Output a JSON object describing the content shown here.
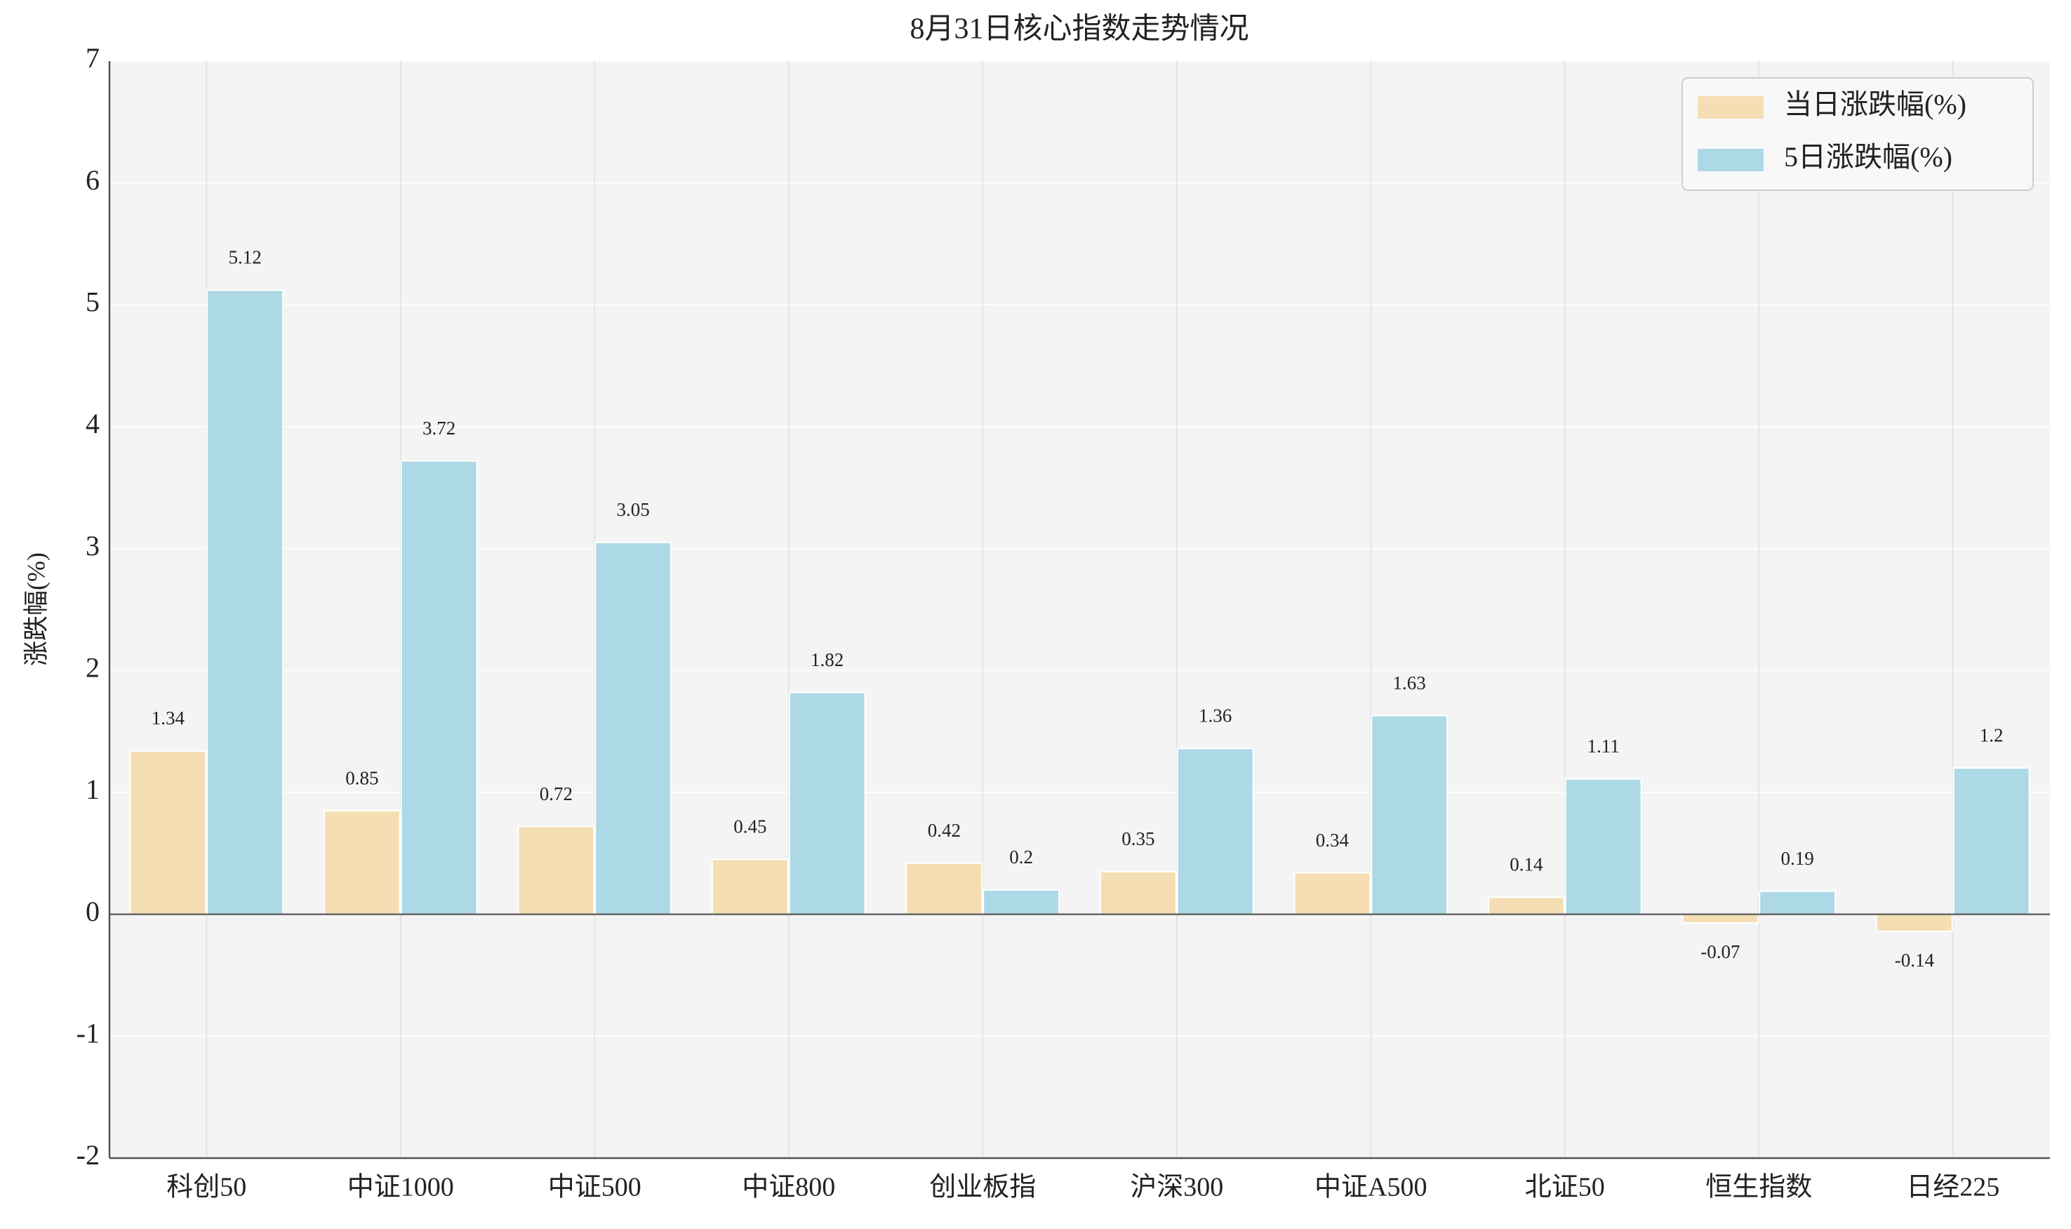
{
  "chart_data": {
    "type": "bar",
    "title": "8月31日核心指数走势情况",
    "y_label": "涨跌幅(%)",
    "categories": [
      "科创50",
      "中证1000",
      "中证500",
      "中证800",
      "创业板指",
      "沪深300",
      "中证A500",
      "北证50",
      "恒生指数",
      "日经225"
    ],
    "series": [
      {
        "name": "当日涨跌幅(%)",
        "color": "#f5deb3",
        "values": [
          1.34,
          0.85,
          0.72,
          0.45,
          0.42,
          0.35,
          0.34,
          0.14,
          -0.07,
          -0.14
        ]
      },
      {
        "name": "5日涨跌幅(%)",
        "color": "#add8e6",
        "values": [
          5.12,
          3.72,
          3.05,
          1.82,
          0.2,
          1.36,
          1.63,
          1.11,
          0.19,
          1.2
        ]
      }
    ],
    "ylim": [
      -2,
      7
    ],
    "yticks": [
      -2,
      -1,
      0,
      1,
      2,
      3,
      4,
      5,
      6,
      7
    ],
    "grid": true,
    "legend": "upper right"
  }
}
